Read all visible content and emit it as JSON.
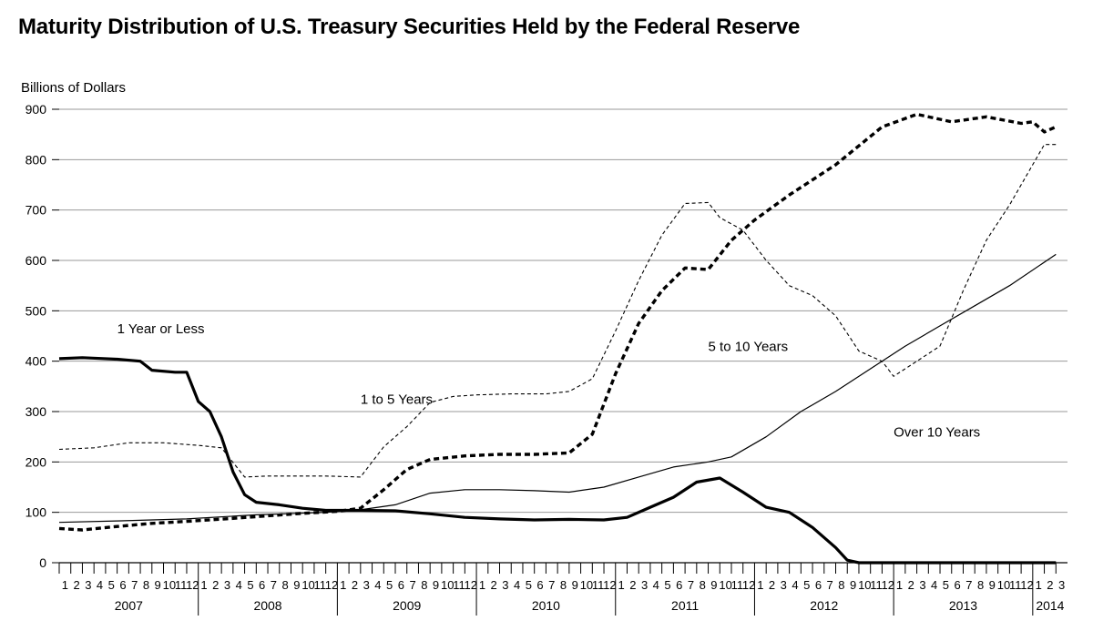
{
  "title": "Maturity Distribution of U.S. Treasury Securities Held by the Federal Reserve",
  "unit_label": "Billions of Dollars",
  "chart_data": {
    "type": "line",
    "ylim": [
      0,
      900
    ],
    "yticks": [
      0,
      100,
      200,
      300,
      400,
      500,
      600,
      700,
      800,
      900
    ],
    "grid": true,
    "start": "2007-01",
    "end": "2014-03",
    "x_tick_labels": [
      "1",
      "2",
      "3",
      "4",
      "5",
      "6",
      "7",
      "8",
      "9",
      "10",
      "11",
      "12",
      "1",
      "2",
      "3",
      "4",
      "5",
      "6",
      "7",
      "8",
      "9",
      "10",
      "11",
      "12",
      "1",
      "2",
      "3",
      "4",
      "5",
      "6",
      "7",
      "8",
      "9",
      "10",
      "11",
      "12",
      "1",
      "2",
      "3",
      "4",
      "5",
      "6",
      "7",
      "8",
      "9",
      "10",
      "11",
      "12",
      "1",
      "2",
      "3",
      "4",
      "5",
      "6",
      "7",
      "8",
      "9",
      "10",
      "11",
      "12",
      "1",
      "2",
      "3",
      "4",
      "5",
      "6",
      "7",
      "8",
      "9",
      "10",
      "11",
      "12",
      "1",
      "2",
      "3",
      "4",
      "5",
      "6",
      "7",
      "8",
      "9",
      "10",
      "11",
      "12",
      "1",
      "2",
      "3"
    ],
    "year_labels": [
      "2007",
      "2008",
      "2009",
      "2010",
      "2011",
      "2012",
      "2013",
      "2014"
    ],
    "series": [
      {
        "name": "1 Year or Less",
        "style": "thick-solid",
        "x": [
          "2007-01",
          "2007-03",
          "2007-06",
          "2007-08",
          "2007-09",
          "2007-11",
          "2007-12",
          "2008-01",
          "2008-02",
          "2008-03",
          "2008-04",
          "2008-05",
          "2008-06",
          "2008-08",
          "2008-10",
          "2008-12",
          "2009-03",
          "2009-06",
          "2009-09",
          "2009-12",
          "2010-03",
          "2010-06",
          "2010-09",
          "2010-12",
          "2011-02",
          "2011-04",
          "2011-06",
          "2011-08",
          "2011-10",
          "2011-12",
          "2012-02",
          "2012-04",
          "2012-06",
          "2012-08",
          "2012-09",
          "2012-10",
          "2013-01",
          "2013-06",
          "2014-01",
          "2014-03"
        ],
        "values": [
          405,
          407,
          404,
          400,
          382,
          378,
          378,
          320,
          300,
          250,
          180,
          135,
          120,
          115,
          108,
          104,
          104,
          103,
          97,
          90,
          87,
          85,
          86,
          85,
          90,
          110,
          130,
          160,
          168,
          140,
          110,
          100,
          70,
          30,
          5,
          0,
          0,
          0,
          0,
          0
        ]
      },
      {
        "name": "1 to 5 Years",
        "style": "thin-dashed",
        "x": [
          "2007-01",
          "2007-04",
          "2007-07",
          "2007-10",
          "2008-01",
          "2008-03",
          "2008-05",
          "2008-07",
          "2008-09",
          "2008-12",
          "2009-03",
          "2009-05",
          "2009-07",
          "2009-09",
          "2009-11",
          "2010-01",
          "2010-04",
          "2010-07",
          "2010-09",
          "2010-11",
          "2011-01",
          "2011-03",
          "2011-05",
          "2011-07",
          "2011-09",
          "2011-10",
          "2011-12",
          "2012-02",
          "2012-04",
          "2012-06",
          "2012-08",
          "2012-10",
          "2012-12",
          "2013-01",
          "2013-03",
          "2013-05",
          "2013-07",
          "2013-09",
          "2013-11",
          "2014-01",
          "2014-02",
          "2014-03"
        ],
        "values": [
          225,
          228,
          238,
          238,
          233,
          228,
          170,
          172,
          172,
          172,
          170,
          230,
          270,
          318,
          330,
          333,
          335,
          335,
          340,
          365,
          460,
          560,
          650,
          713,
          715,
          685,
          660,
          600,
          550,
          530,
          490,
          420,
          400,
          370,
          400,
          430,
          540,
          640,
          710,
          790,
          830,
          830
        ]
      },
      {
        "name": "5 to 10 Years",
        "style": "thick-dashed",
        "x": [
          "2007-01",
          "2007-03",
          "2007-06",
          "2007-09",
          "2007-12",
          "2008-04",
          "2008-07",
          "2008-10",
          "2009-01",
          "2009-03",
          "2009-05",
          "2009-07",
          "2009-09",
          "2009-12",
          "2010-03",
          "2010-06",
          "2010-09",
          "2010-11",
          "2011-01",
          "2011-03",
          "2011-05",
          "2011-07",
          "2011-09",
          "2011-11",
          "2012-01",
          "2012-04",
          "2012-08",
          "2012-12",
          "2013-03",
          "2013-06",
          "2013-09",
          "2013-12",
          "2014-01",
          "2014-02",
          "2014-03"
        ],
        "values": [
          68,
          65,
          72,
          78,
          82,
          88,
          93,
          98,
          102,
          108,
          145,
          185,
          205,
          212,
          215,
          215,
          218,
          255,
          375,
          475,
          540,
          585,
          582,
          640,
          680,
          730,
          790,
          865,
          890,
          875,
          885,
          872,
          875,
          855,
          865
        ]
      },
      {
        "name": "Over 10 Years",
        "style": "thin-solid",
        "x": [
          "2007-01",
          "2007-06",
          "2007-12",
          "2008-06",
          "2008-12",
          "2009-03",
          "2009-06",
          "2009-09",
          "2009-12",
          "2010-03",
          "2010-06",
          "2010-09",
          "2010-12",
          "2011-03",
          "2011-06",
          "2011-09",
          "2011-11",
          "2012-02",
          "2012-05",
          "2012-08",
          "2012-11",
          "2013-02",
          "2013-05",
          "2013-08",
          "2013-11",
          "2014-03"
        ],
        "values": [
          80,
          83,
          87,
          95,
          100,
          105,
          115,
          138,
          145,
          145,
          143,
          140,
          150,
          170,
          190,
          200,
          210,
          250,
          300,
          340,
          385,
          430,
          470,
          510,
          550,
          612
        ]
      }
    ],
    "annotations": [
      {
        "text": "1 Year or Less",
        "x": "2007-06",
        "y": 455
      },
      {
        "text": "1 to 5 Years",
        "x": "2009-03",
        "y": 315
      },
      {
        "text": "5 to 10 Years",
        "x": "2011-09",
        "y": 420
      },
      {
        "text": "Over 10 Years",
        "x": "2013-01",
        "y": 250
      }
    ]
  }
}
